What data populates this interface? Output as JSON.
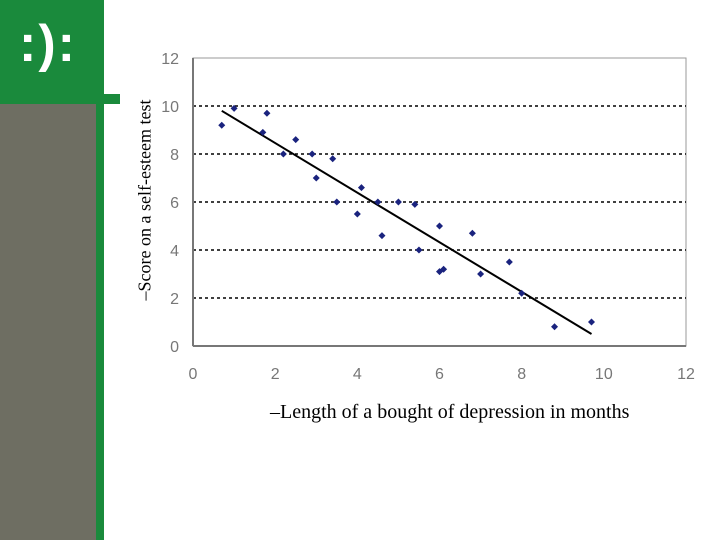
{
  "slide": {
    "logo_text": ":):",
    "accent_color": "#1a8a3c",
    "sidebar_gray": "#6e6e62"
  },
  "chart_data": {
    "type": "scatter",
    "title": "",
    "xlabel": "–Length of a bought of depression in months",
    "ylabel": "–Score on a self-esteem test",
    "xlim": [
      0,
      12
    ],
    "ylim": [
      0,
      12
    ],
    "xticks": [
      "0",
      "2",
      "4",
      "6",
      "8",
      "10",
      "12"
    ],
    "yticks": [
      "0",
      "2",
      "4",
      "6",
      "8",
      "10",
      "12"
    ],
    "grid": "horizontal-dashed",
    "point_color": "#1a237e",
    "points": [
      {
        "x": 0.7,
        "y": 9.2
      },
      {
        "x": 1.0,
        "y": 9.9
      },
      {
        "x": 1.7,
        "y": 8.9
      },
      {
        "x": 1.8,
        "y": 9.7
      },
      {
        "x": 2.2,
        "y": 8.0
      },
      {
        "x": 2.5,
        "y": 8.6
      },
      {
        "x": 2.9,
        "y": 8.0
      },
      {
        "x": 3.0,
        "y": 7.0
      },
      {
        "x": 3.4,
        "y": 7.8
      },
      {
        "x": 3.5,
        "y": 6.0
      },
      {
        "x": 4.0,
        "y": 5.5
      },
      {
        "x": 4.1,
        "y": 6.6
      },
      {
        "x": 4.5,
        "y": 6.0
      },
      {
        "x": 4.6,
        "y": 4.6
      },
      {
        "x": 5.0,
        "y": 6.0
      },
      {
        "x": 5.4,
        "y": 5.9
      },
      {
        "x": 5.5,
        "y": 4.0
      },
      {
        "x": 6.0,
        "y": 5.0
      },
      {
        "x": 6.0,
        "y": 3.1
      },
      {
        "x": 6.1,
        "y": 3.2
      },
      {
        "x": 6.8,
        "y": 4.7
      },
      {
        "x": 7.0,
        "y": 3.0
      },
      {
        "x": 7.7,
        "y": 3.5
      },
      {
        "x": 8.0,
        "y": 2.2
      },
      {
        "x": 8.8,
        "y": 0.8
      },
      {
        "x": 9.7,
        "y": 1.0
      }
    ],
    "trendline": {
      "x": [
        0.7,
        9.7
      ],
      "y": [
        9.8,
        0.5
      ]
    }
  }
}
